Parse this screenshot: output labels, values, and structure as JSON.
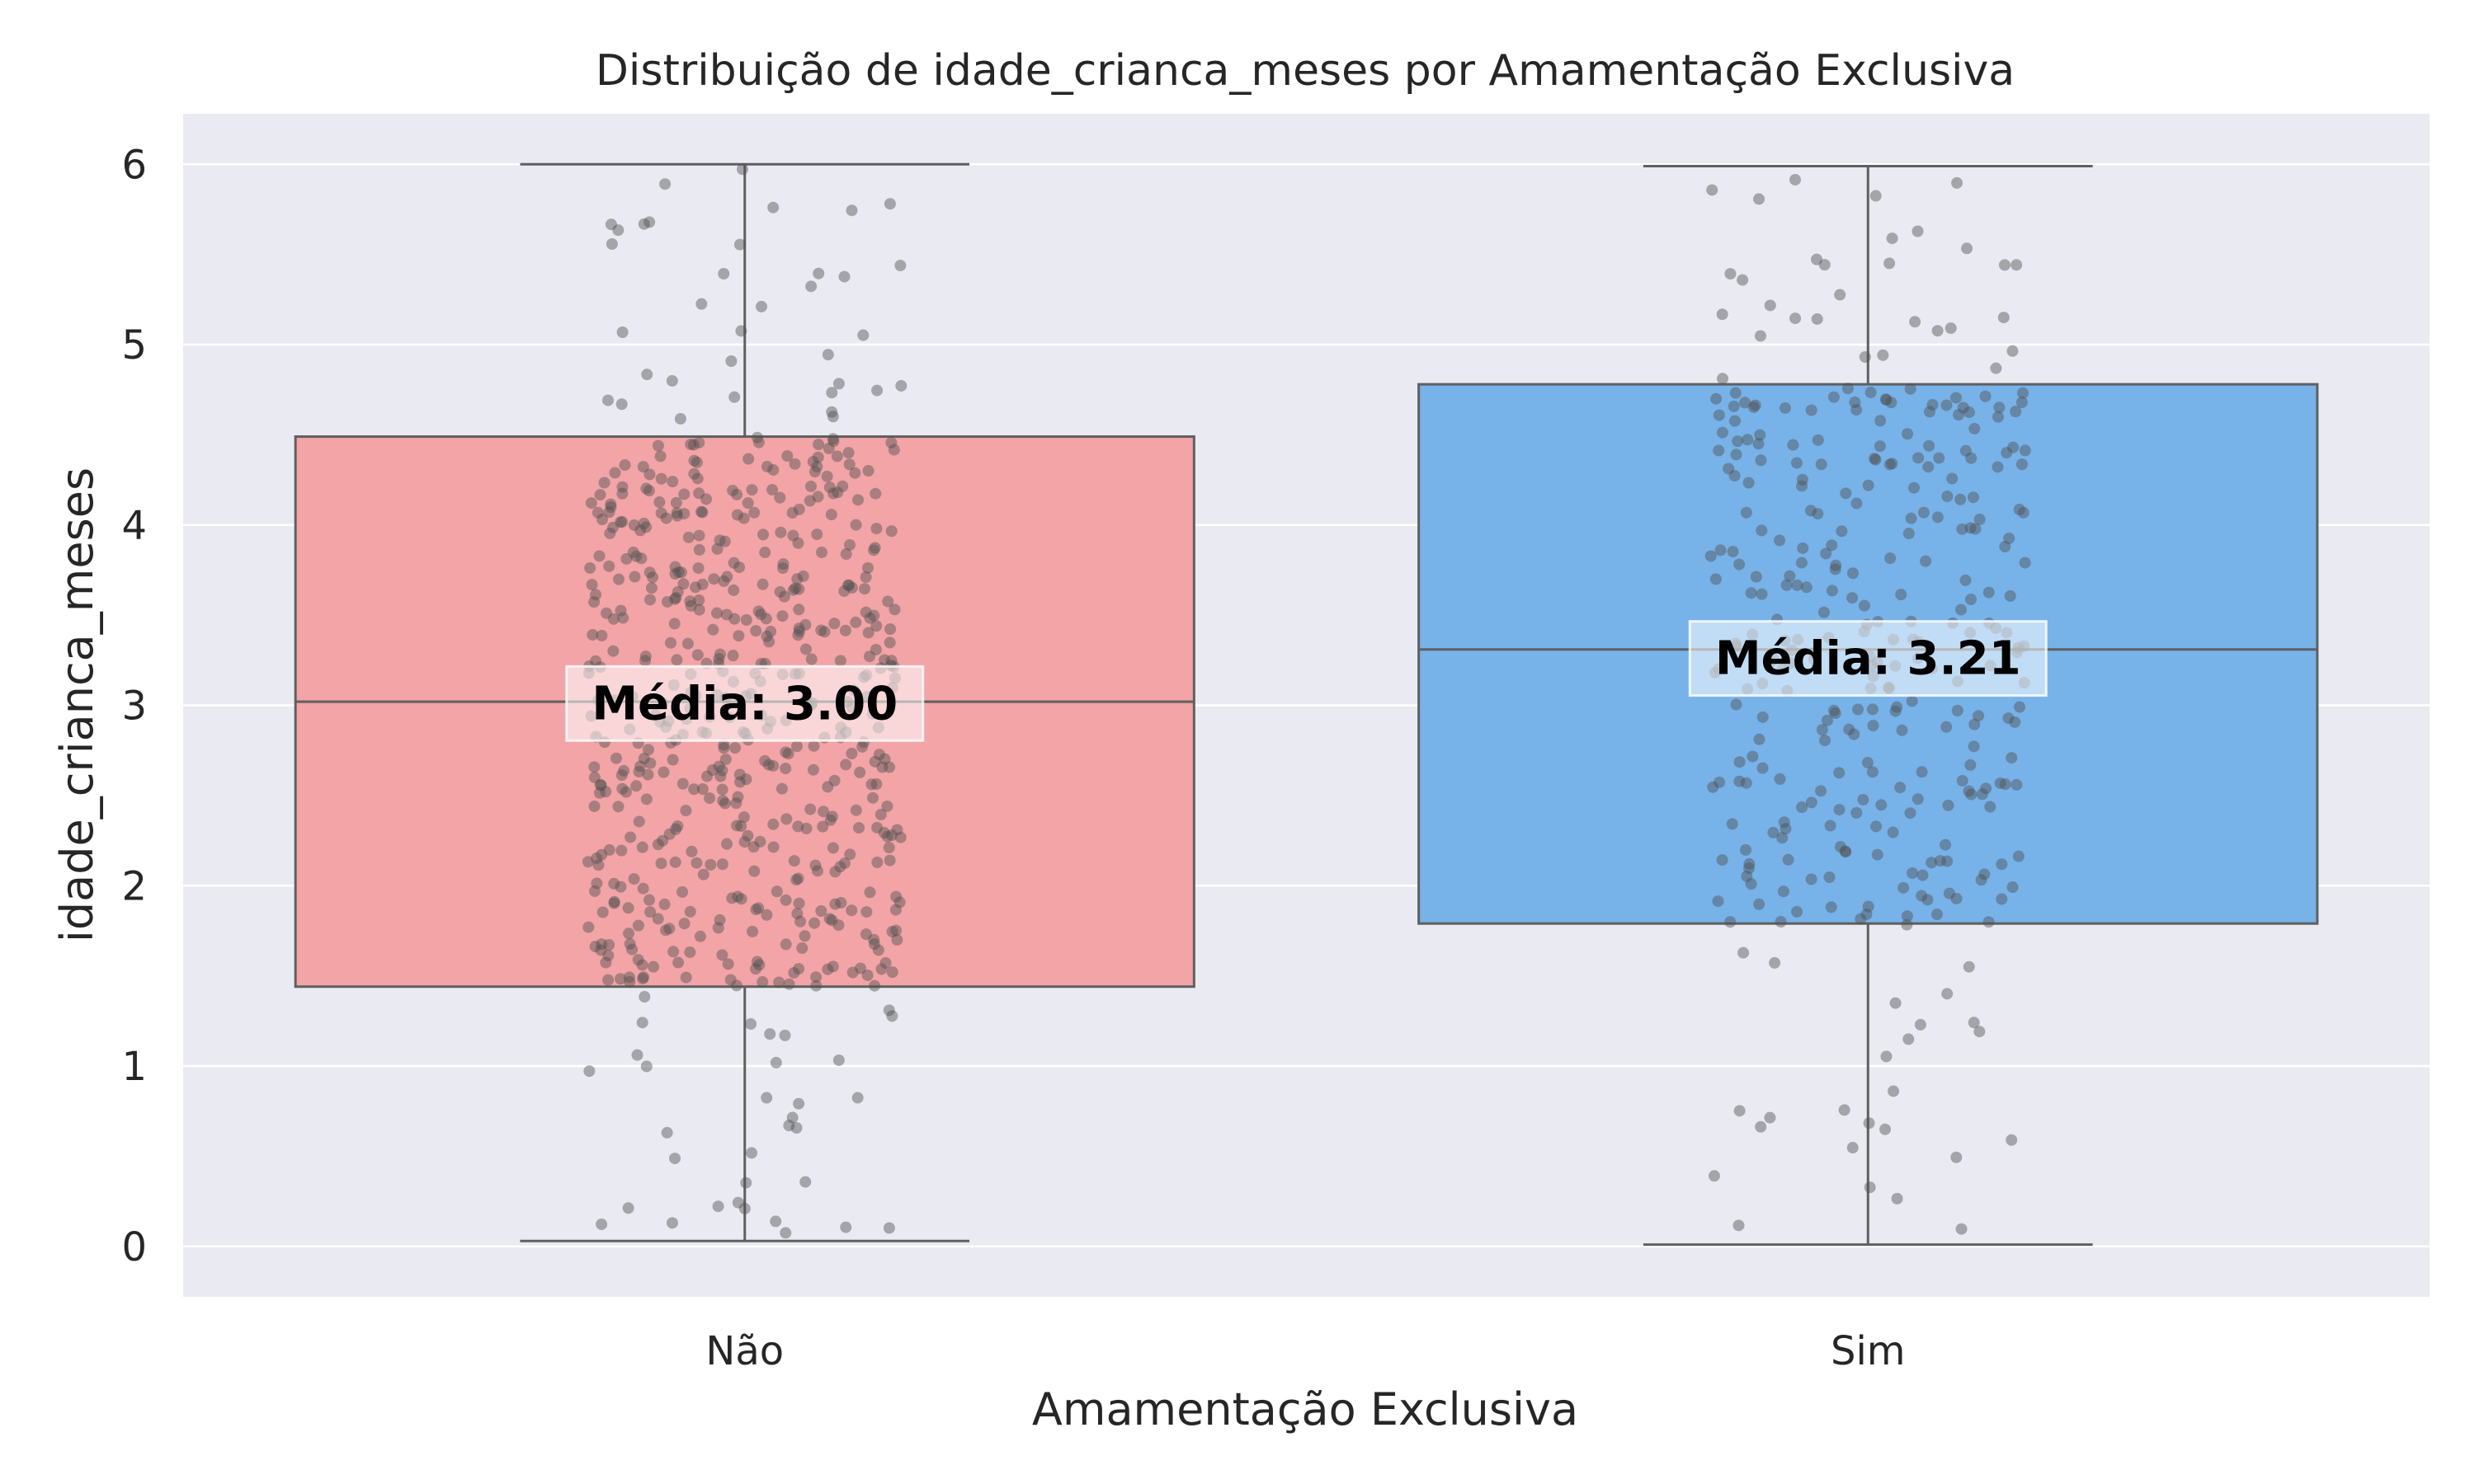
{
  "chart_data": {
    "type": "boxplot",
    "title": "Distribuição de idade_crianca_meses por Amamentação Exclusiva",
    "xlabel": "Amamentação Exclusiva",
    "ylabel": "idade_crianca_meses",
    "categories": [
      "Não",
      "Sim"
    ],
    "ylim": [
      -0.28,
      6.28
    ],
    "yticks": [
      "0",
      "1",
      "2",
      "3",
      "4",
      "5",
      "6"
    ],
    "grid": true,
    "boxes": [
      {
        "category": "Não",
        "color": "#f2a4a6",
        "whisker_low": 0.03,
        "q1": 1.44,
        "median": 3.02,
        "q3": 4.49,
        "whisker_high": 6.0,
        "mean_label": "Média: 3.00",
        "mean": 3.0
      },
      {
        "category": "Sim",
        "color": "#77b2e9",
        "whisker_low": 0.01,
        "q1": 1.79,
        "median": 3.31,
        "q3": 4.78,
        "whisker_high": 5.99,
        "mean_label": "Média: 3.21",
        "mean": 3.21
      }
    ],
    "points_per_group": [
      600,
      340
    ]
  },
  "colors": {
    "background": "#eaeaf2",
    "grid": "#ffffff",
    "box_edge": "#5f5f5f",
    "points": "#505050"
  }
}
